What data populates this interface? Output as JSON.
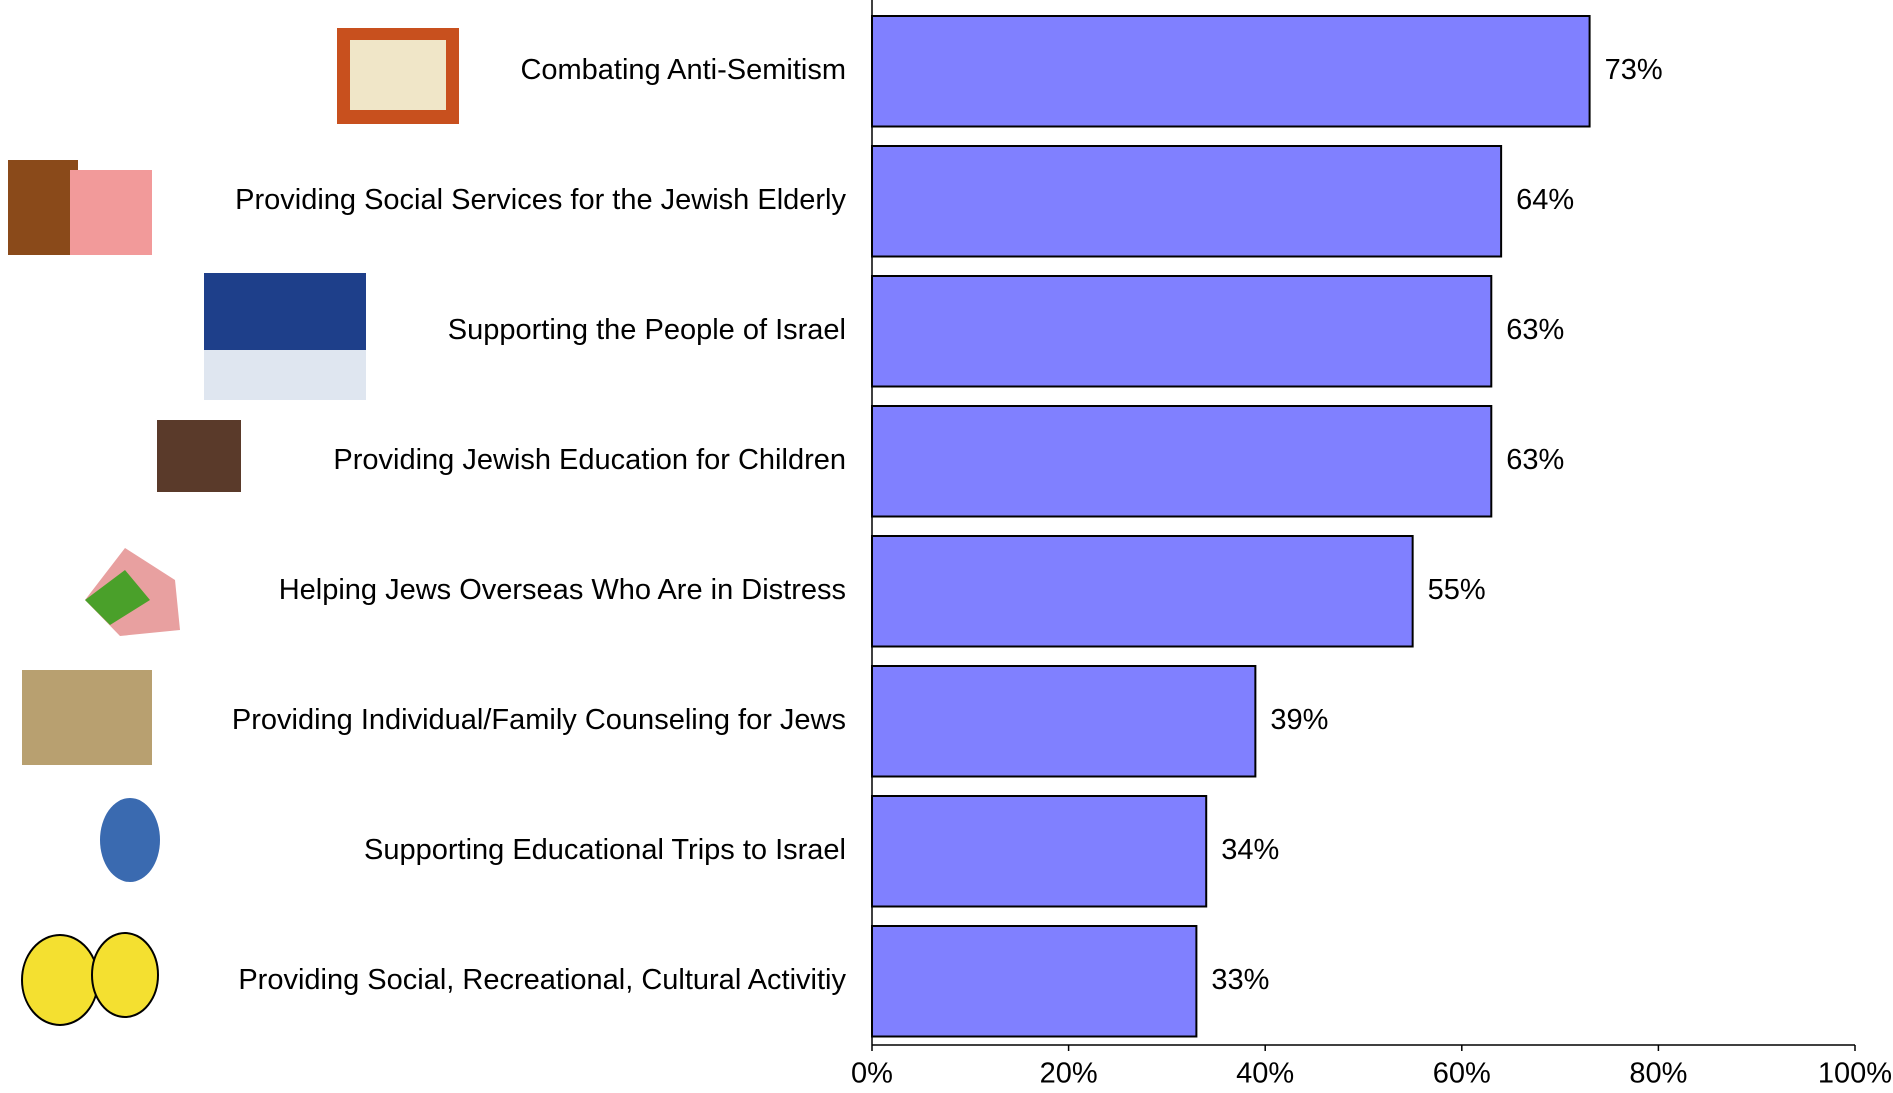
{
  "chart_data": {
    "type": "bar",
    "orientation": "horizontal",
    "categories": [
      "Combating Anti-Semitism",
      "Providing Social Services for the Jewish Elderly",
      "Supporting the People of Israel",
      "Providing Jewish Education for Children",
      "Helping Jews Overseas Who Are in Distress",
      "Providing Individual/Family Counseling for Jews",
      "Supporting Educational Trips to Israel",
      "Providing Social, Recreational, Cultural Activitiy"
    ],
    "values": [
      73,
      64,
      63,
      63,
      55,
      39,
      34,
      33
    ],
    "value_labels": [
      "73%",
      "64%",
      "63%",
      "63%",
      "55%",
      "39%",
      "34%",
      "33%"
    ],
    "color": "#8080ff",
    "xlim": [
      0,
      100
    ],
    "xticks": [
      {
        "value": 0,
        "label": "0%"
      },
      {
        "value": 20,
        "label": "20%"
      },
      {
        "value": 40,
        "label": "40%"
      },
      {
        "value": 60,
        "label": "60%"
      },
      {
        "value": 80,
        "label": "80%"
      },
      {
        "value": 100,
        "label": "100%"
      }
    ]
  }
}
